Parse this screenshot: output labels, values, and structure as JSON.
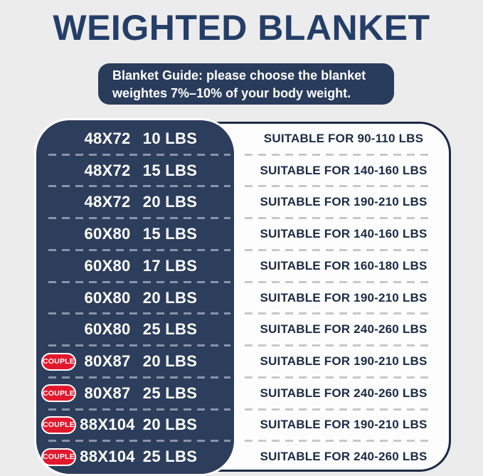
{
  "header": {
    "title": "WEIGHTED BLANKET"
  },
  "banner": {
    "line1": "Blanket Guide: please choose the blanket",
    "line2": "weightes 7%–10% of your body weight."
  },
  "chart_data": {
    "type": "table",
    "title": "WEIGHTED BLANKET",
    "subtitle": "Blanket Guide: please choose the blanket weightes 7%–10% of your body weight.",
    "couple_label": "COUPLE",
    "columns": [
      "size",
      "weight",
      "suitable_for"
    ],
    "rows": [
      {
        "couple": false,
        "size": "48X72",
        "weight": "10 LBS",
        "suitable": "SUITABLE FOR 90-110 LBS"
      },
      {
        "couple": false,
        "size": "48X72",
        "weight": "15 LBS",
        "suitable": "SUITABLE FOR 140-160 LBS"
      },
      {
        "couple": false,
        "size": "48X72",
        "weight": "20 LBS",
        "suitable": "SUITABLE FOR 190-210 LBS"
      },
      {
        "couple": false,
        "size": "60X80",
        "weight": "15 LBS",
        "suitable": "SUITABLE FOR 140-160 LBS"
      },
      {
        "couple": false,
        "size": "60X80",
        "weight": "17 LBS",
        "suitable": "SUITABLE FOR 160-180 LBS"
      },
      {
        "couple": false,
        "size": "60X80",
        "weight": "20 LBS",
        "suitable": "SUITABLE FOR 190-210 LBS"
      },
      {
        "couple": false,
        "size": "60X80",
        "weight": "25 LBS",
        "suitable": "SUITABLE FOR 240-260 LBS"
      },
      {
        "couple": true,
        "size": "80X87",
        "weight": "20 LBS",
        "suitable": "SUITABLE FOR 190-210 LBS"
      },
      {
        "couple": true,
        "size": "80X87",
        "weight": "25 LBS",
        "suitable": "SUITABLE FOR 240-260 LBS"
      },
      {
        "couple": true,
        "size": "88X104",
        "weight": "20 LBS",
        "suitable": "SUITABLE FOR 190-210 LBS"
      },
      {
        "couple": true,
        "size": "88X104",
        "weight": "25 LBS",
        "suitable": "SUITABLE FOR 240-260 LBS"
      }
    ]
  },
  "colors": {
    "background": "#ececec",
    "navy_panel": "#2d3e5c",
    "banner_navy": "#2a3c5b",
    "title_navy": "#243e68",
    "card_border": "#1b2a45",
    "badge_red": "#e2182e",
    "dash_on_navy": "#8a94a8",
    "dash_on_white": "#c8c8c8",
    "text_white": "#ffffff"
  }
}
